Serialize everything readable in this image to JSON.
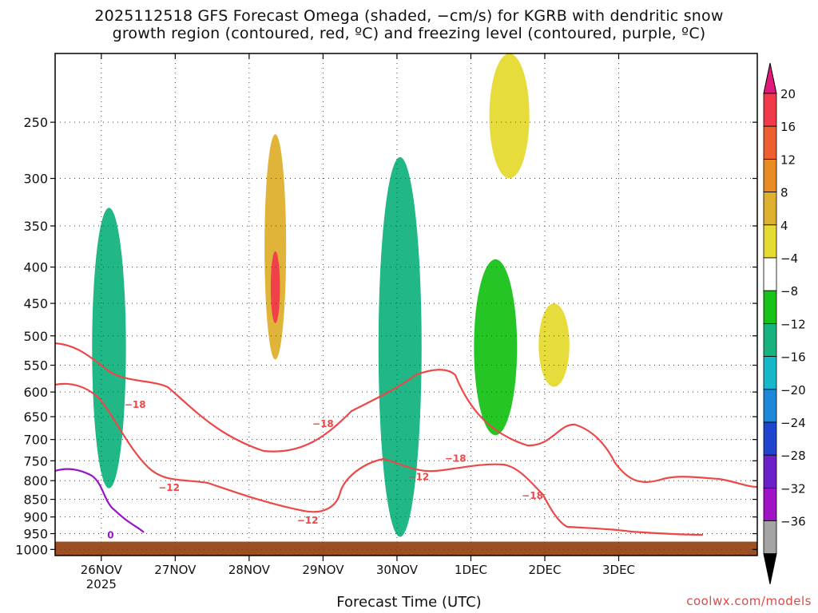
{
  "title": {
    "line1": "2025112518 GFS Forecast Omega (shaded, −cm/s) for KGRB with dendritic snow",
    "line2": "growth region (contoured, red, ºC) and freezing level (contoured, purple, ºC)"
  },
  "x_axis_title": "Forecast Time (UTC)",
  "credit": "coolwx.com/models",
  "chart_data": {
    "type": "heatmap",
    "y_axis": {
      "unit": "hPa",
      "ticks": [
        250,
        300,
        350,
        400,
        450,
        500,
        550,
        600,
        650,
        700,
        750,
        800,
        850,
        900,
        950,
        1000
      ],
      "range": [
        200,
        1020
      ],
      "scale": "log"
    },
    "x_axis": {
      "unit": "hours",
      "range": [
        -9,
        219
      ],
      "ticks": [
        {
          "h": 6,
          "label": "26NOV",
          "sub": "2025"
        },
        {
          "h": 30,
          "label": "27NOV",
          "sub": ""
        },
        {
          "h": 54,
          "label": "28NOV",
          "sub": ""
        },
        {
          "h": 78,
          "label": "29NOV",
          "sub": ""
        },
        {
          "h": 102,
          "label": "30NOV",
          "sub": ""
        },
        {
          "h": 126,
          "label": "1DEC",
          "sub": ""
        },
        {
          "h": 150,
          "label": "2DEC",
          "sub": ""
        },
        {
          "h": 174,
          "label": "3DEC",
          "sub": ""
        }
      ]
    },
    "colorbar": {
      "labels": [
        "20",
        "16",
        "12",
        "8",
        "4",
        "−4",
        "−8",
        "−12",
        "−16",
        "−20",
        "−24",
        "−28",
        "−32",
        "−36"
      ],
      "colors": [
        "#f03a4a",
        "#ef5e2e",
        "#e88b23",
        "#ddb02d",
        "#e5db33",
        "#ffffff",
        "#19c219",
        "#16b37f",
        "#14b8c9",
        "#1d87d8",
        "#1f45d0",
        "#6a22c8",
        "#a012c6",
        "#a4a4a4"
      ],
      "top_color": "#e0187a",
      "bottom_color": "#000000"
    },
    "shaded_regions": [
      {
        "label": "upward",
        "time_h": [
          59,
          66
        ],
        "p_hpa": [
          260,
          540
        ],
        "value": 8
      },
      {
        "label": "upward",
        "time_h": [
          61,
          64
        ],
        "p_hpa": [
          380,
          480
        ],
        "value": 20
      },
      {
        "label": "downward",
        "time_h": [
          3,
          14
        ],
        "p_hpa": [
          330,
          820
        ],
        "value": -8
      },
      {
        "label": "downward",
        "time_h": [
          96,
          110
        ],
        "p_hpa": [
          280,
          960
        ],
        "value": -10
      },
      {
        "label": "downward",
        "time_h": [
          127,
          141
        ],
        "p_hpa": [
          390,
          690
        ],
        "value": -5
      },
      {
        "label": "upward",
        "time_h": [
          132,
          145
        ],
        "p_hpa": [
          200,
          300
        ],
        "value": 4
      },
      {
        "label": "upward",
        "time_h": [
          148,
          158
        ],
        "p_hpa": [
          450,
          590
        ],
        "value": 4
      }
    ],
    "contours": [
      {
        "name": "dgz-cold",
        "label": "−18",
        "color": "#ee4747",
        "unit": "ºC"
      },
      {
        "name": "dgz-warm",
        "label": "−12",
        "color": "#ee4747",
        "unit": "ºC"
      },
      {
        "name": "freezing-level",
        "label": "0",
        "color": "#9a13c6",
        "unit": "ºC"
      }
    ],
    "contour_labels": [
      {
        "text": "−18",
        "time_h": 17,
        "p_hpa": 625
      },
      {
        "text": "−18",
        "time_h": 78,
        "p_hpa": 665
      },
      {
        "text": "−18",
        "time_h": 121,
        "p_hpa": 745
      },
      {
        "text": "−18",
        "time_h": 146,
        "p_hpa": 840
      },
      {
        "text": "−12",
        "time_h": 28,
        "p_hpa": 818
      },
      {
        "text": "−12",
        "time_h": 73,
        "p_hpa": 910
      },
      {
        "text": "−12",
        "time_h": 109,
        "p_hpa": 790
      },
      {
        "text": "0",
        "time_h": 9,
        "p_hpa": 955
      }
    ],
    "terrain": {
      "color": "#9b4f23",
      "surface_p_hpa": 975
    }
  }
}
